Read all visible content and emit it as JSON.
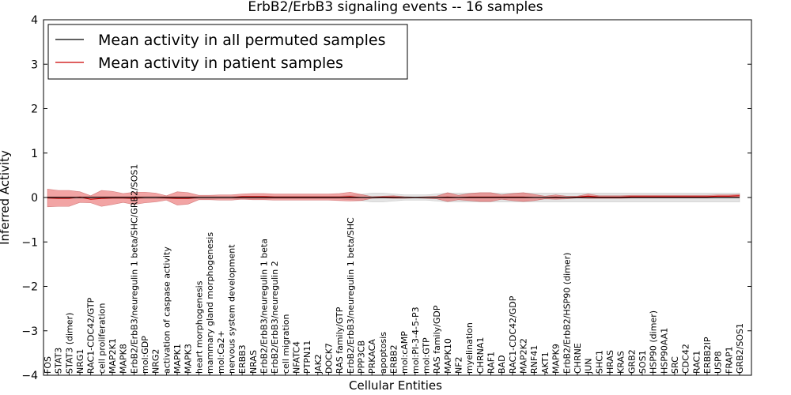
{
  "chart_data": {
    "type": "line",
    "title": "ErbB2/ErbB3 signaling events -- 16 samples",
    "xlabel": "Cellular Entities",
    "ylabel": "Inferred Activity",
    "ylim": [
      -4,
      4
    ],
    "yticks": [
      "−4",
      "−3",
      "−2",
      "−1",
      "0",
      "1",
      "2",
      "3",
      "4"
    ],
    "grid": false,
    "legend": {
      "position": "top-left",
      "entries": [
        {
          "label": "Mean activity in all permuted samples",
          "color": "#000000"
        },
        {
          "label": "Mean activity in patient samples",
          "color": "#cc0000"
        }
      ]
    },
    "categories": [
      "FOS",
      "STAT3",
      "STAT3 (dimer)",
      "NRG1",
      "RAC1-CDC42/GTP",
      "cell proliferation",
      "MAP2K1",
      "MAPK8",
      "ErbB2/ErbB3/neuregulin 1 beta/SHC/GRB2/SOS1",
      "mol:GDP",
      "NRG2",
      "activation of caspase activity",
      "MAPK1",
      "MAPK3",
      "heart morphogenesis",
      "mammary gland morphogenesis",
      "mol:Ca2+",
      "nervous system development",
      "ERBB3",
      "NRAS",
      "ErbB2/ErbB3/neuregulin 1 beta",
      "ErbB2/ErbB3/neuregulin 2",
      "cell migration",
      "NFATC4",
      "PTPN11",
      "JAK2",
      "DOCK7",
      "RAS family/GTP",
      "ErbB2/ErbB3/neuregulin 1 beta/SHC",
      "PPP3CB",
      "PRKACA",
      "apoptosis",
      "ERBB2",
      "mol:cAMP",
      "mol:PI-3-4-5-P3",
      "mol:GTP",
      "RAS family/GDP",
      "MAPK10",
      "NF2",
      "myelination",
      "CHRNA1",
      "RAF1",
      "BAD",
      "RAC1-CDC42/GDP",
      "MAP2K2",
      "RNF41",
      "AKT1",
      "MAPK9",
      "ErbB2/ErbB2/HSP90 (dimer)",
      "CHRNE",
      "JUN",
      "SHC1",
      "HRAS",
      "KRAS",
      "GRB2",
      "SOS1",
      "HSP90 (dimer)",
      "HSP90AA1",
      "SRC",
      "CDC42",
      "RAC1",
      "ERBB2IP",
      "USP8",
      "FRAP1",
      "GRB2/SOS1"
    ],
    "series": [
      {
        "name": "Mean activity in all permuted samples",
        "color": "#000000",
        "band_color": "#d9d9d9",
        "values": [
          0,
          0,
          0,
          0,
          0,
          0,
          0,
          0,
          0,
          0,
          0,
          0,
          0,
          0,
          0,
          0,
          0,
          0,
          0,
          0,
          0,
          0,
          0,
          0,
          0,
          0,
          0,
          0,
          0,
          0,
          0,
          0,
          0,
          0,
          0,
          0,
          0,
          0,
          0,
          0,
          0,
          0,
          0,
          0,
          0,
          0,
          0,
          0,
          0,
          0,
          0,
          0,
          0,
          0,
          0,
          0,
          0,
          0,
          0,
          0,
          0,
          0,
          0,
          0,
          0
        ],
        "band": [
          0.02,
          0.02,
          0.02,
          0.02,
          0.03,
          0.03,
          0.03,
          0.03,
          0.03,
          0.03,
          0.03,
          0.03,
          0.03,
          0.03,
          0.03,
          0.03,
          0.03,
          0.03,
          0.03,
          0.03,
          0.03,
          0.03,
          0.03,
          0.03,
          0.03,
          0.03,
          0.03,
          0.03,
          0.05,
          0.07,
          0.1,
          0.1,
          0.08,
          0.06,
          0.06,
          0.06,
          0.08,
          0.1,
          0.1,
          0.1,
          0.1,
          0.1,
          0.1,
          0.1,
          0.1,
          0.1,
          0.1,
          0.1,
          0.1,
          0.1,
          0.1,
          0.1,
          0.1,
          0.1,
          0.1,
          0.1,
          0.1,
          0.1,
          0.1,
          0.1,
          0.1,
          0.1,
          0.1,
          0.1,
          0.1
        ]
      },
      {
        "name": "Mean activity in patient samples",
        "color": "#cc0000",
        "band_color": "#e85a5a",
        "values": [
          -0.01,
          -0.02,
          -0.02,
          0.01,
          -0.04,
          -0.02,
          -0.01,
          -0.01,
          -0.02,
          0,
          0,
          -0.01,
          -0.02,
          -0.02,
          0,
          0,
          0,
          0,
          0.02,
          0.02,
          0.02,
          0.01,
          0.01,
          0.01,
          0.01,
          0.01,
          0.01,
          0.01,
          0.02,
          0,
          0,
          0.01,
          0.01,
          0,
          0,
          0,
          0,
          0.01,
          0,
          0.01,
          0.01,
          0.01,
          0.01,
          0.01,
          0.01,
          0,
          0,
          0.01,
          0,
          0.01,
          0.03,
          0.01,
          0.01,
          0.01,
          0.02,
          0.02,
          0.02,
          0.02,
          0.02,
          0.02,
          0.02,
          0.02,
          0.03,
          0.03,
          0.04
        ],
        "band": [
          0.2,
          0.18,
          0.18,
          0.12,
          0.08,
          0.18,
          0.15,
          0.1,
          0.14,
          0.12,
          0.1,
          0.05,
          0.15,
          0.13,
          0.05,
          0.05,
          0.06,
          0.06,
          0.06,
          0.07,
          0.07,
          0.07,
          0.07,
          0.07,
          0.07,
          0.07,
          0.07,
          0.08,
          0.1,
          0.07,
          0.02,
          0.02,
          0.03,
          0.02,
          0.01,
          0.02,
          0.03,
          0.1,
          0.05,
          0.08,
          0.1,
          0.1,
          0.05,
          0.08,
          0.1,
          0.07,
          0.03,
          0.05,
          0.03,
          0.02,
          0.05,
          0.03,
          0.03,
          0.03,
          0.03,
          0.03,
          0.03,
          0.03,
          0.03,
          0.03,
          0.03,
          0.03,
          0.03,
          0.03,
          0.03
        ]
      }
    ]
  }
}
